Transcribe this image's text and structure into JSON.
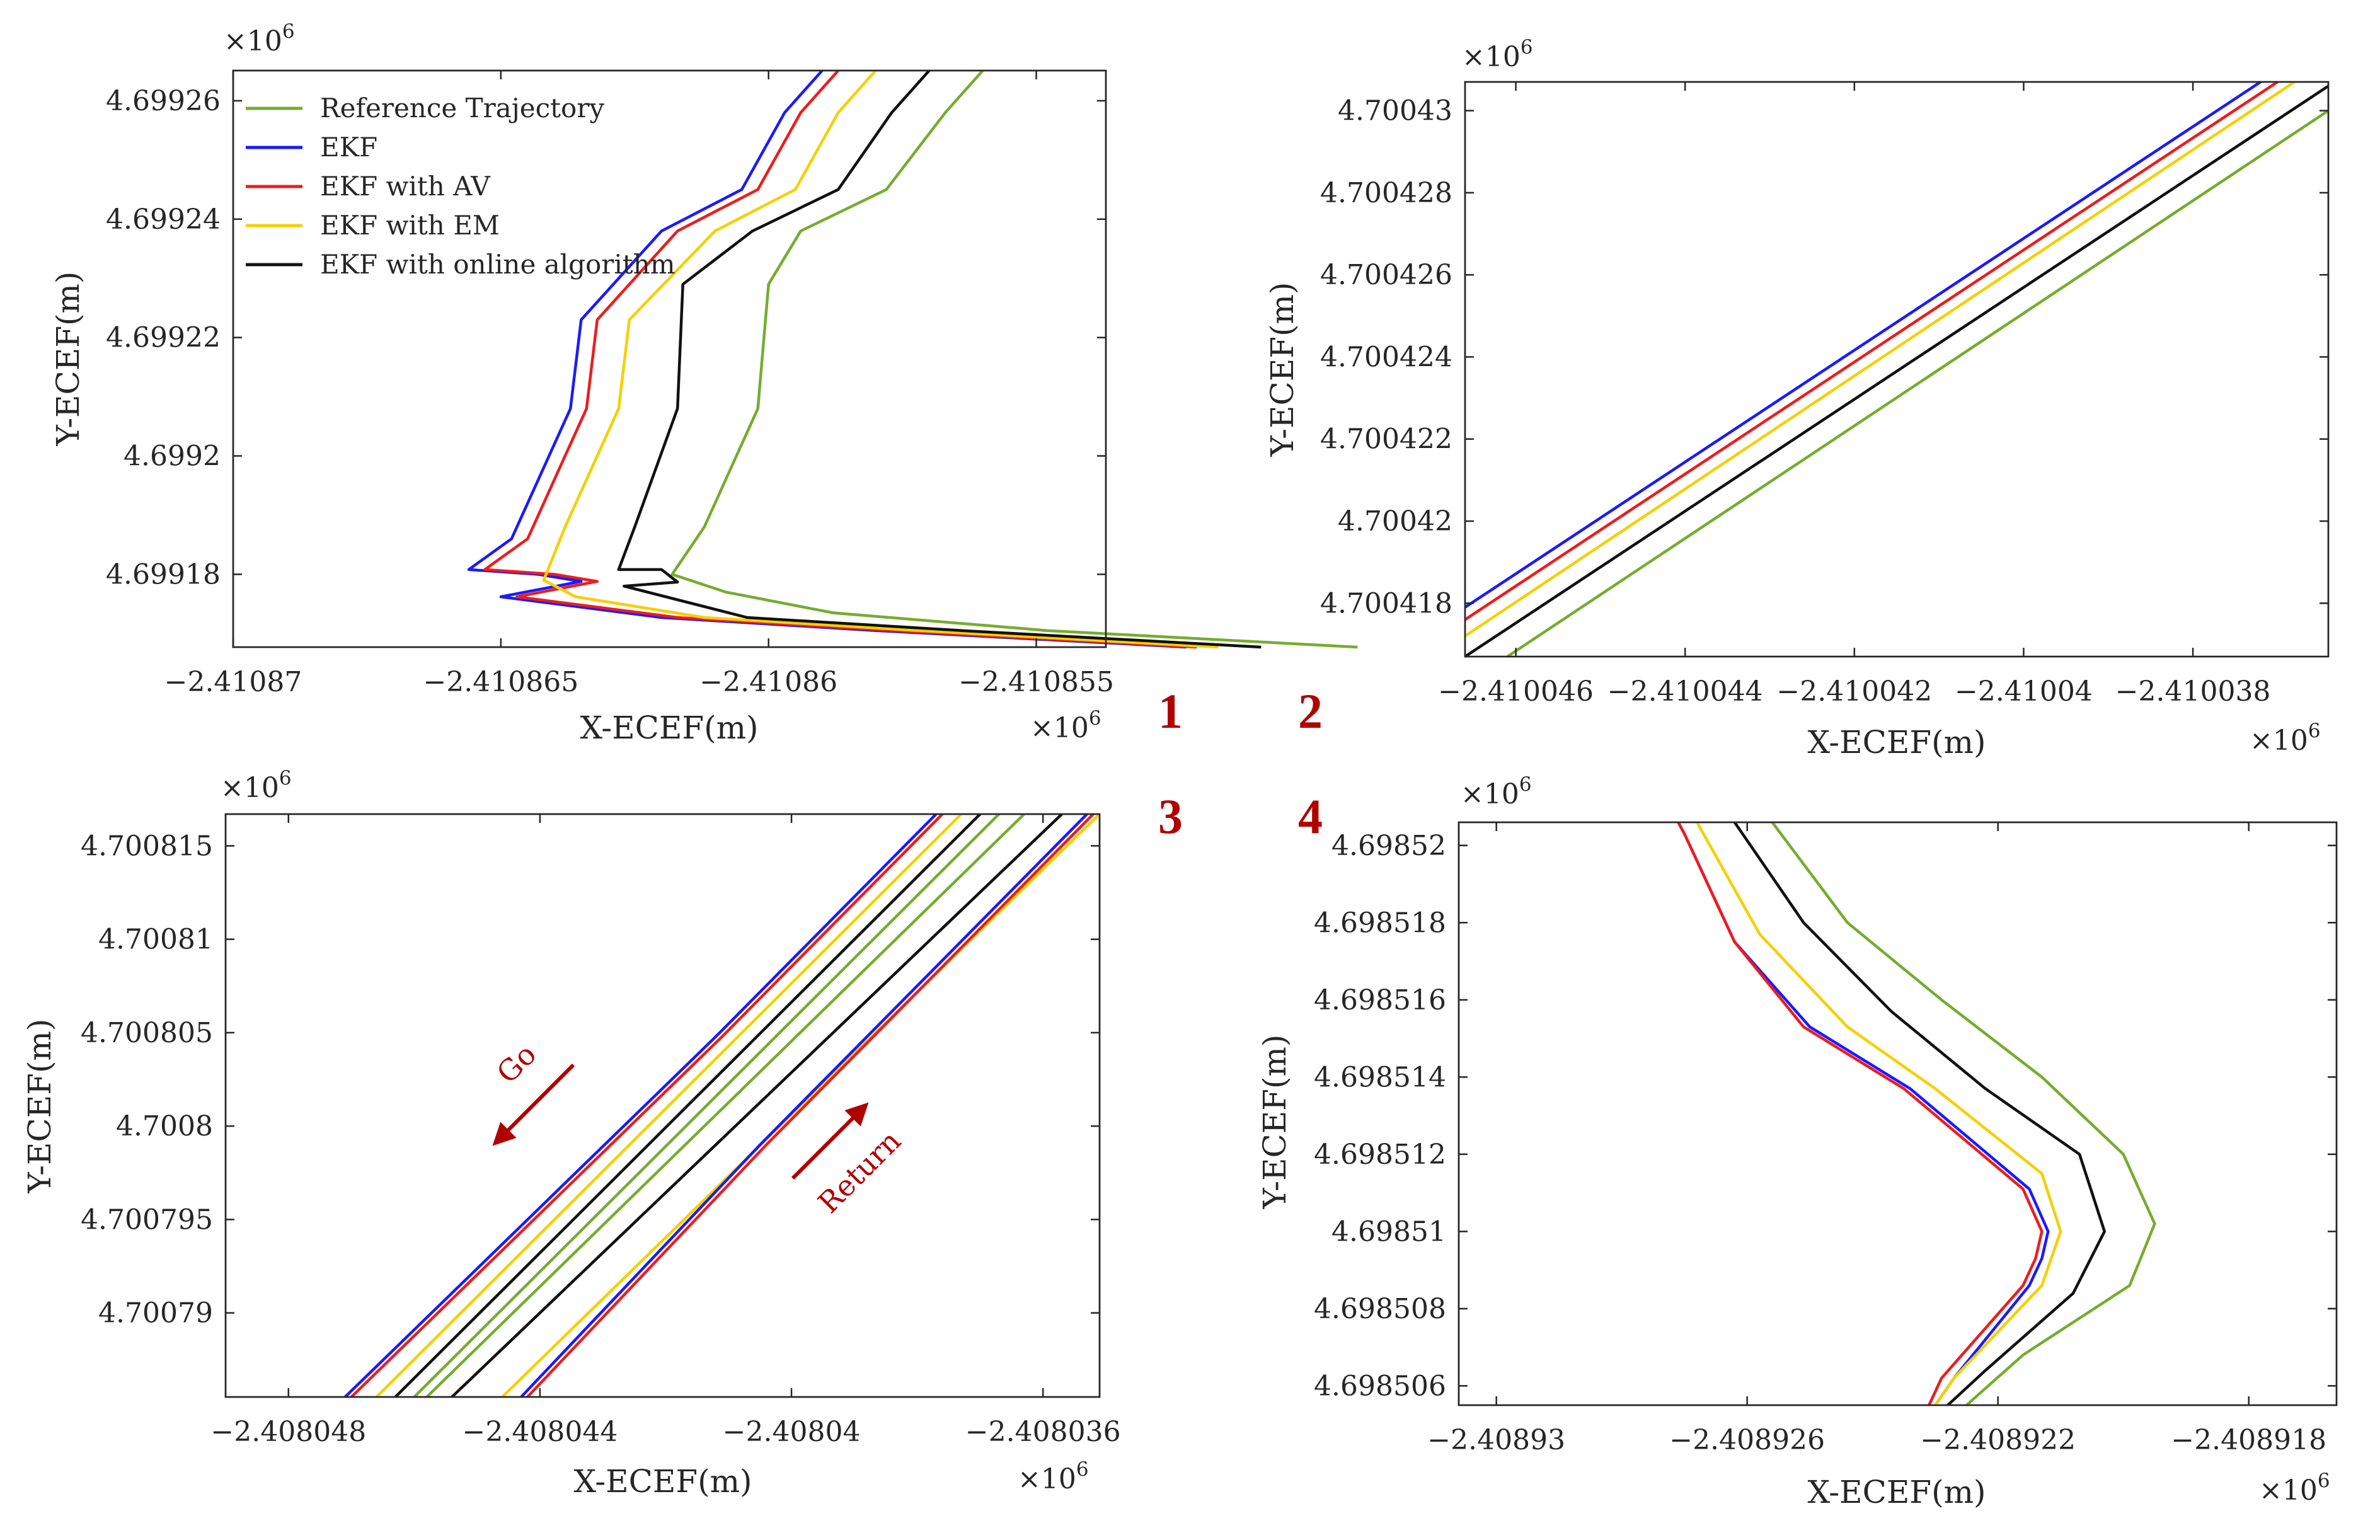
{
  "figure": {
    "colors": {
      "Reference Trajectory": "#77AC30",
      "EKF": "#1a1aff",
      "EKF with AV": "#ee1c1c",
      "EKF with EM": "#f5d000",
      "EKF with online algorithm": "#111111"
    },
    "axis_color": "#262626"
  },
  "chart_data": [
    {
      "id": "1",
      "panel_label": "1",
      "type": "line",
      "xlabel": "X-ECEF(m)",
      "ylabel": "Y-ECEF(m)",
      "x_multiplier": "×10",
      "x_multiplier_exp": "6",
      "y_multiplier": "×10",
      "y_multiplier_exp": "6",
      "xlim": [
        -2.41087,
        -2.4108537
      ],
      "ylim": [
        4.6991677,
        4.6992651
      ],
      "xticks": [
        -2.41087,
        -2.410865,
        -2.41086,
        -2.410855
      ],
      "xtick_labels": [
        "−2.41087",
        "−2.410865",
        "−2.41086",
        "−2.410855"
      ],
      "yticks": [
        4.69918,
        4.6992,
        4.69922,
        4.69924,
        4.69926
      ],
      "ytick_labels": [
        "4.69918",
        "4.6992",
        "4.69922",
        "4.69924",
        "4.69926"
      ],
      "legend": {
        "position": "top-left",
        "entries": [
          "Reference Trajectory",
          "EKF",
          "EKF with AV",
          "EKF with EM",
          "EKF with online algorithm"
        ]
      },
      "series": [
        {
          "name": "EKF",
          "points": [
            [
              -2.410859,
              4.6992651
            ],
            [
              -2.4108597,
              4.699258
            ],
            [
              -2.4108605,
              4.699245
            ],
            [
              -2.410862,
              4.699238
            ],
            [
              -2.4108635,
              4.699223
            ],
            [
              -2.4108637,
              4.699208
            ],
            [
              -2.4108648,
              4.699186
            ],
            [
              -2.4108656,
              4.6991808
            ],
            [
              -2.4108643,
              4.69918
            ],
            [
              -2.4108635,
              4.6991788
            ],
            [
              -2.410865,
              4.6991762
            ],
            [
              -2.410862,
              4.6991727
            ],
            [
              -2.410858,
              4.6991705
            ],
            [
              -2.4108522,
              4.6991677
            ]
          ]
        },
        {
          "name": "EKF with AV",
          "points": [
            [
              -2.4108587,
              4.6992651
            ],
            [
              -2.4108594,
              4.699258
            ],
            [
              -2.4108602,
              4.699245
            ],
            [
              -2.4108617,
              4.699238
            ],
            [
              -2.4108632,
              4.699223
            ],
            [
              -2.4108634,
              4.699208
            ],
            [
              -2.4108645,
              4.699186
            ],
            [
              -2.4108653,
              4.6991808
            ],
            [
              -2.410864,
              4.69918
            ],
            [
              -2.4108632,
              4.6991788
            ],
            [
              -2.4108647,
              4.6991762
            ],
            [
              -2.4108617,
              4.6991727
            ],
            [
              -2.4108577,
              4.6991705
            ],
            [
              -2.410852,
              4.6991677
            ]
          ]
        },
        {
          "name": "EKF with EM",
          "points": [
            [
              -2.410858,
              4.6992651
            ],
            [
              -2.4108587,
              4.699258
            ],
            [
              -2.4108595,
              4.699245
            ],
            [
              -2.410861,
              4.699238
            ],
            [
              -2.4108626,
              4.699223
            ],
            [
              -2.4108628,
              4.699208
            ],
            [
              -2.4108638,
              4.699188
            ],
            [
              -2.4108642,
              4.699179
            ],
            [
              -2.4108636,
              4.6991762
            ],
            [
              -2.4108612,
              4.6991727
            ],
            [
              -2.4108572,
              4.6991705
            ],
            [
              -2.4108516,
              4.6991677
            ]
          ]
        },
        {
          "name": "EKF with online algorithm",
          "points": [
            [
              -2.410857,
              4.6992651
            ],
            [
              -2.4108577,
              4.699258
            ],
            [
              -2.4108587,
              4.699245
            ],
            [
              -2.4108603,
              4.699238
            ],
            [
              -2.4108616,
              4.699229
            ],
            [
              -2.4108617,
              4.699208
            ],
            [
              -2.4108625,
              4.699188
            ],
            [
              -2.4108628,
              4.6991808
            ],
            [
              -2.410862,
              4.6991808
            ],
            [
              -2.4108617,
              4.6991787
            ],
            [
              -2.4108627,
              4.699178
            ],
            [
              -2.4108604,
              4.6991727
            ],
            [
              -2.4108564,
              4.6991705
            ],
            [
              -2.4108508,
              4.6991677
            ]
          ]
        },
        {
          "name": "Reference Trajectory",
          "points": [
            [
              -2.410856,
              4.6992651
            ],
            [
              -2.4108567,
              4.699258
            ],
            [
              -2.4108578,
              4.699245
            ],
            [
              -2.4108594,
              4.699238
            ],
            [
              -2.41086,
              4.699229
            ],
            [
              -2.4108602,
              4.699208
            ],
            [
              -2.4108612,
              4.699188
            ],
            [
              -2.4108618,
              4.69918
            ],
            [
              -2.4108608,
              4.699177
            ],
            [
              -2.4108588,
              4.6991735
            ],
            [
              -2.4108548,
              4.6991705
            ],
            [
              -2.410849,
              4.6991677
            ]
          ]
        }
      ]
    },
    {
      "id": "2",
      "panel_label": "2",
      "type": "line",
      "xlabel": "X-ECEF(m)",
      "ylabel": "Y-ECEF(m)",
      "x_multiplier": "×10",
      "x_multiplier_exp": "6",
      "y_multiplier": "×10",
      "y_multiplier_exp": "6",
      "xlim": [
        -2.4100466,
        -2.4100364
      ],
      "ylim": [
        4.7004167,
        4.7004307
      ],
      "xticks": [
        -2.410046,
        -2.410044,
        -2.410042,
        -2.41004,
        -2.410038
      ],
      "xtick_labels": [
        "−2.410046",
        "−2.410044",
        "−2.410042",
        "−2.41004",
        "−2.410038"
      ],
      "yticks": [
        4.700418,
        4.70042,
        4.700422,
        4.700424,
        4.700426,
        4.700428,
        4.70043
      ],
      "ytick_labels": [
        "4.700418",
        "4.70042",
        "4.700422",
        "4.700424",
        "4.700426",
        "4.700428",
        "4.70043"
      ],
      "series": [
        {
          "name": "EKF",
          "points": [
            [
              -2.4100466,
              4.7004179
            ],
            [
              -2.4100372,
              4.7004307
            ]
          ]
        },
        {
          "name": "EKF with AV",
          "points": [
            [
              -2.4100466,
              4.7004176
            ],
            [
              -2.410037,
              4.7004307
            ]
          ]
        },
        {
          "name": "EKF with EM",
          "points": [
            [
              -2.4100466,
              4.7004172
            ],
            [
              -2.4100368,
              4.7004307
            ]
          ]
        },
        {
          "name": "EKF with online algorithm",
          "points": [
            [
              -2.4100466,
              4.7004167
            ],
            [
              -2.4100364,
              4.7004306
            ]
          ]
        },
        {
          "name": "Reference Trajectory",
          "points": [
            [
              -2.4100461,
              4.7004167
            ],
            [
              -2.4100364,
              4.70043
            ]
          ]
        }
      ]
    },
    {
      "id": "3",
      "panel_label": "3",
      "type": "line",
      "xlabel": "X-ECEF(m)",
      "ylabel": "Y-ECEF(m)",
      "x_multiplier": "×10",
      "x_multiplier_exp": "6",
      "y_multiplier": "×10",
      "y_multiplier_exp": "6",
      "xlim": [
        -2.408049,
        -2.4080351
      ],
      "ylim": [
        4.7007855,
        4.7008167
      ],
      "xticks": [
        -2.408048,
        -2.408044,
        -2.40804,
        -2.408036
      ],
      "xtick_labels": [
        "−2.408048",
        "−2.408044",
        "−2.40804",
        "−2.408036"
      ],
      "yticks": [
        4.70079,
        4.700795,
        4.7008,
        4.700805,
        4.70081,
        4.700815
      ],
      "ytick_labels": [
        "4.70079",
        "4.700795",
        "4.7008",
        "4.700805",
        "4.70081",
        "4.700815"
      ],
      "annotations": [
        {
          "text": "Go",
          "direction": "down-left"
        },
        {
          "text": "Return",
          "direction": "up-right"
        }
      ],
      "series": [
        {
          "name": "EKF",
          "points": [
            [
              -2.4080471,
              4.7007855
            ],
            [
              -2.4080412,
              4.7008048
            ],
            [
              -2.4080377,
              4.7008167
            ]
          ]
        },
        {
          "name": "EKF with AV",
          "points": [
            [
              -2.408047,
              4.7007855
            ],
            [
              -2.4080411,
              4.7008048
            ],
            [
              -2.4080376,
              4.7008167
            ]
          ]
        },
        {
          "name": "EKF with EM",
          "points": [
            [
              -2.4080466,
              4.7007855
            ],
            [
              -2.4080373,
              4.7008167
            ]
          ]
        },
        {
          "name": "EKF with online algorithm",
          "points": [
            [
              -2.4080463,
              4.7007855
            ],
            [
              -2.408037,
              4.7008167
            ]
          ]
        },
        {
          "name": "Reference Trajectory",
          "points": [
            [
              -2.408046,
              4.7007855
            ],
            [
              -2.4080367,
              4.7008167
            ]
          ]
        },
        {
          "name": "Reference Trajectory",
          "points": [
            [
              -2.4080458,
              4.7007855
            ],
            [
              -2.4080363,
              4.7008167
            ]
          ]
        },
        {
          "name": "EKF with online algorithm",
          "points": [
            [
              -2.4080454,
              4.7007855
            ],
            [
              -2.4080357,
              4.7008167
            ]
          ]
        },
        {
          "name": "EKF with EM",
          "points": [
            [
              -2.4080446,
              4.7007855
            ],
            [
              -2.4080351,
              4.7008167
            ]
          ]
        },
        {
          "name": "EKF",
          "points": [
            [
              -2.4080443,
              4.7007855
            ],
            [
              -2.4080405,
              4.700799
            ],
            [
              -2.4080353,
              4.7008167
            ]
          ]
        },
        {
          "name": "EKF with AV",
          "points": [
            [
              -2.4080442,
              4.7007855
            ],
            [
              -2.4080404,
              4.700799
            ],
            [
              -2.4080352,
              4.7008167
            ]
          ]
        }
      ]
    },
    {
      "id": "4",
      "panel_label": "4",
      "type": "line",
      "xlabel": "X-ECEF(m)",
      "ylabel": "Y-ECEF(m)",
      "x_multiplier": "×10",
      "x_multiplier_exp": "6",
      "y_multiplier": "×10",
      "y_multiplier_exp": "6",
      "xlim": [
        -2.4089306,
        -2.4089166
      ],
      "ylim": [
        4.6985055,
        4.6985206
      ],
      "xticks": [
        -2.40893,
        -2.408926,
        -2.408922,
        -2.408918
      ],
      "xtick_labels": [
        "−2.40893",
        "−2.408926",
        "−2.408922",
        "−2.408918"
      ],
      "yticks": [
        4.698506,
        4.698508,
        4.69851,
        4.698512,
        4.698514,
        4.698516,
        4.698518,
        4.69852
      ],
      "ytick_labels": [
        "4.698506",
        "4.698508",
        "4.69851",
        "4.698512",
        "4.698514",
        "4.698516",
        "4.698518",
        "4.69852"
      ],
      "series": [
        {
          "name": "EKF",
          "points": [
            [
              -2.4089271,
              4.6985206
            ],
            [
              -2.408927,
              4.6985203
            ],
            [
              -2.4089262,
              4.6985175
            ],
            [
              -2.408925,
              4.6985153
            ],
            [
              -2.4089234,
              4.6985137
            ],
            [
              -2.4089215,
              4.6985111
            ],
            [
              -2.4089212,
              4.69851
            ],
            [
              -2.4089213,
              4.6985093
            ],
            [
              -2.4089215,
              4.6985086
            ],
            [
              -2.4089227,
              4.6985062
            ],
            [
              -2.408923,
              4.6985055
            ]
          ]
        },
        {
          "name": "EKF with AV",
          "points": [
            [
              -2.4089271,
              4.6985206
            ],
            [
              -2.408927,
              4.6985203
            ],
            [
              -2.4089262,
              4.6985175
            ],
            [
              -2.4089251,
              4.6985153
            ],
            [
              -2.4089235,
              4.6985137
            ],
            [
              -2.4089216,
              4.6985111
            ],
            [
              -2.4089213,
              4.69851
            ],
            [
              -2.4089214,
              4.6985093
            ],
            [
              -2.4089216,
              4.6985086
            ],
            [
              -2.4089229,
              4.6985062
            ],
            [
              -2.4089231,
              4.6985055
            ]
          ]
        },
        {
          "name": "EKF with EM",
          "points": [
            [
              -2.4089268,
              4.6985206
            ],
            [
              -2.4089258,
              4.6985177
            ],
            [
              -2.4089244,
              4.6985153
            ],
            [
              -2.408923,
              4.6985137
            ],
            [
              -2.4089213,
              4.6985115
            ],
            [
              -2.408921,
              4.69851
            ],
            [
              -2.4089213,
              4.6985086
            ],
            [
              -2.4089227,
              4.6985062
            ],
            [
              -2.408923,
              4.6985055
            ]
          ]
        },
        {
          "name": "EKF with online algorithm",
          "points": [
            [
              -2.4089262,
              4.6985206
            ],
            [
              -2.4089251,
              4.698518
            ],
            [
              -2.4089237,
              4.6985157
            ],
            [
              -2.4089222,
              4.6985137
            ],
            [
              -2.4089207,
              4.698512
            ],
            [
              -2.4089203,
              4.69851
            ],
            [
              -2.4089208,
              4.6985084
            ],
            [
              -2.4089222,
              4.6985064
            ],
            [
              -2.4089228,
              4.6985055
            ]
          ]
        },
        {
          "name": "Reference Trajectory",
          "points": [
            [
              -2.4089256,
              4.6985206
            ],
            [
              -2.4089244,
              4.698518
            ],
            [
              -2.4089229,
              4.698516
            ],
            [
              -2.4089213,
              4.698514
            ],
            [
              -2.40892,
              4.698512
            ],
            [
              -2.4089195,
              4.6985102
            ],
            [
              -2.4089199,
              4.6985086
            ],
            [
              -2.4089216,
              4.6985068
            ],
            [
              -2.4089225,
              4.6985055
            ]
          ]
        }
      ]
    }
  ]
}
